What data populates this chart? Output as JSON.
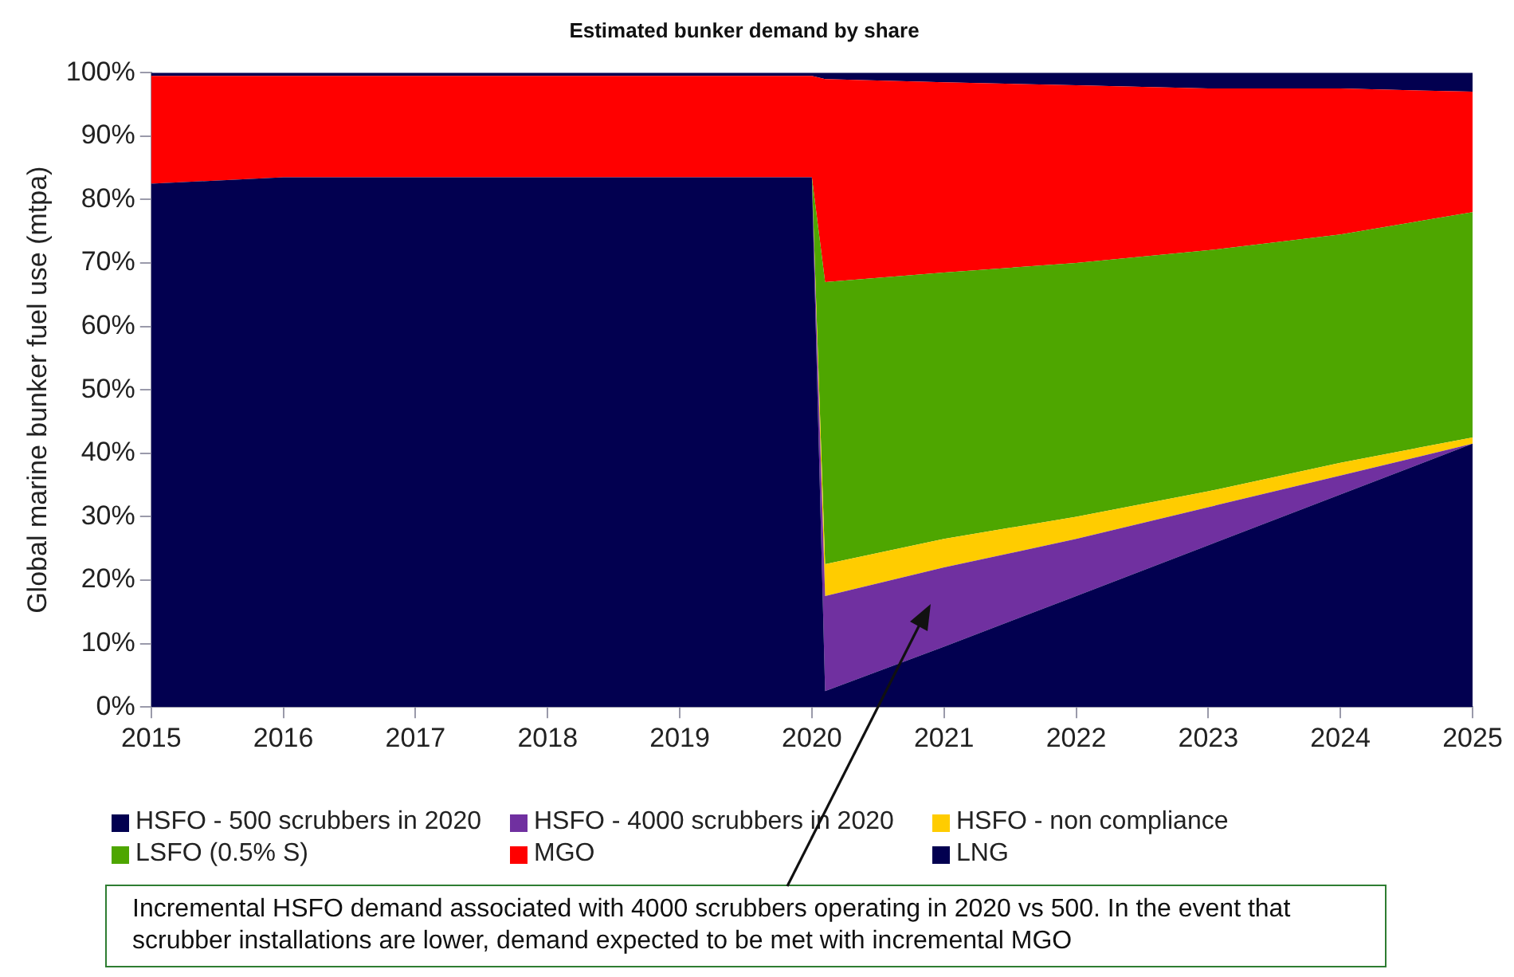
{
  "chart_data": {
    "type": "area",
    "stacked": true,
    "title": "Estimated bunker demand by share",
    "ylabel": "Global marine bunker fuel use (mtpa)",
    "x": [
      2015,
      2016,
      2017,
      2018,
      2019,
      2020,
      2020.1,
      2021,
      2022,
      2023,
      2024,
      2025
    ],
    "series": [
      {
        "name": "HSFO - 500 scrubbers in 2020",
        "color": "#020050",
        "values": [
          82.5,
          83.5,
          83.5,
          83.5,
          83.5,
          83.5,
          2.5,
          9.5,
          17.5,
          25.5,
          33.5,
          41.5
        ]
      },
      {
        "name": "HSFO - 4000 scrubbers in 2020",
        "color": "#7030a0",
        "values": [
          0,
          0,
          0,
          0,
          0,
          0,
          15,
          12.5,
          9,
          6,
          3,
          0
        ]
      },
      {
        "name": "HSFO - non compliance",
        "color": "#ffcc00",
        "values": [
          0,
          0,
          0,
          0,
          0,
          0,
          5,
          4.5,
          3.5,
          2.5,
          2,
          1
        ]
      },
      {
        "name": "LSFO (0.5% S)",
        "color": "#4ea600",
        "values": [
          0,
          0,
          0,
          0,
          0,
          0,
          44.5,
          42,
          40,
          38,
          36,
          35.5
        ]
      },
      {
        "name": "MGO",
        "color": "#ff0000",
        "values": [
          17,
          16,
          16,
          16,
          16,
          16,
          32,
          30,
          28,
          25.5,
          23,
          19
        ]
      },
      {
        "name": "LNG",
        "color": "#020050",
        "values": [
          0.5,
          0.5,
          0.5,
          0.5,
          0.5,
          0.5,
          1,
          1.5,
          2,
          2.5,
          2.5,
          3
        ]
      }
    ],
    "xlim": [
      2015,
      2025
    ],
    "xticks": [
      2015,
      2016,
      2017,
      2018,
      2019,
      2020,
      2021,
      2022,
      2023,
      2024,
      2025
    ],
    "ylim": [
      0,
      100
    ],
    "yticks": [
      {
        "value": 0,
        "label": "0%"
      },
      {
        "value": 10,
        "label": "10%"
      },
      {
        "value": 20,
        "label": "20%"
      },
      {
        "value": 30,
        "label": "30%"
      },
      {
        "value": 40,
        "label": "40%"
      },
      {
        "value": 50,
        "label": "50%"
      },
      {
        "value": 60,
        "label": "60%"
      },
      {
        "value": 70,
        "label": "70%"
      },
      {
        "value": 80,
        "label": "80%"
      },
      {
        "value": 90,
        "label": "90%"
      },
      {
        "value": 100,
        "label": "100%"
      }
    ],
    "grid": false,
    "legend": "bottom",
    "marker": "none",
    "annotations": [
      "Incremental HSFO demand associated with 4000 scrubbers operating in 2020 vs 500. In the event that scrubber installations are lower, demand expected to be met with incremental MGO"
    ]
  }
}
